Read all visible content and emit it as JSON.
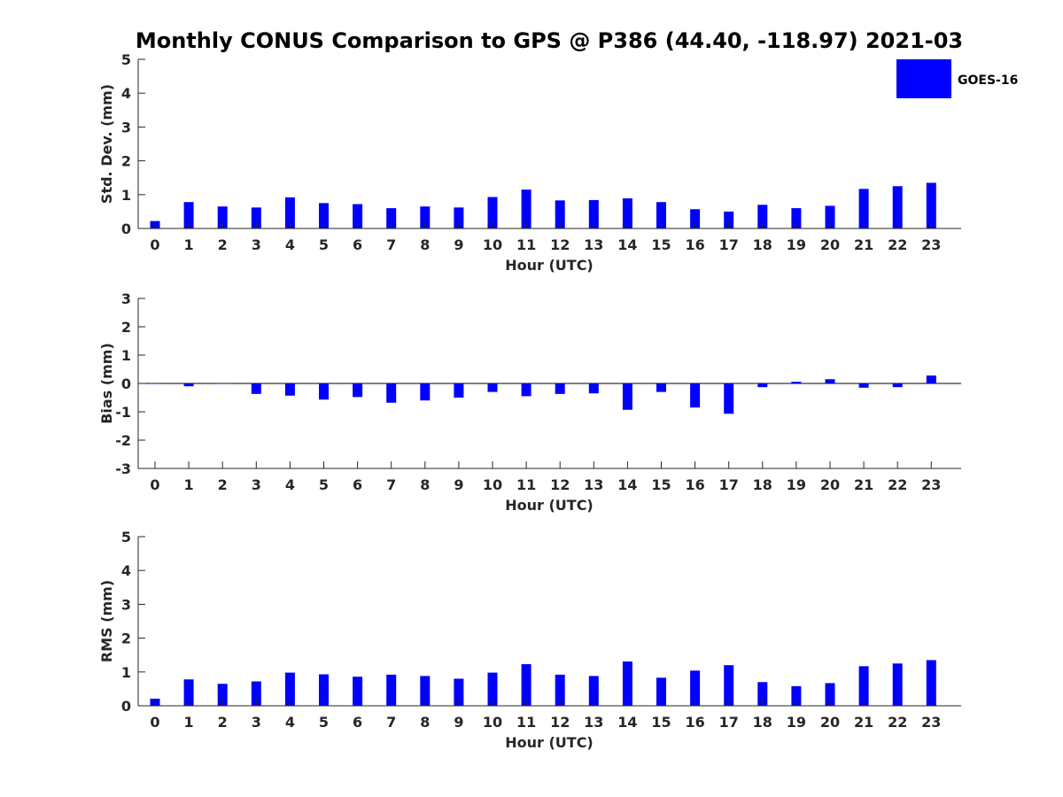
{
  "title": "Monthly CONUS Comparison to GPS @ P386 (44.40, -118.97) 2021-03",
  "colors": {
    "bar": "#0000ff",
    "axis": "#262626",
    "zero_line": "#000000"
  },
  "legend": {
    "label": "GOES-16",
    "placement": "top-right"
  },
  "chart_data": [
    {
      "type": "bar",
      "name": "std-dev",
      "ylabel": "Std. Dev. (mm)",
      "xlabel": "Hour (UTC)",
      "ylim": [
        0,
        5
      ],
      "yticks": [
        0,
        1,
        2,
        3,
        4,
        5
      ],
      "categories": [
        "0",
        "1",
        "2",
        "3",
        "4",
        "5",
        "6",
        "7",
        "8",
        "9",
        "10",
        "11",
        "12",
        "13",
        "14",
        "15",
        "16",
        "17",
        "18",
        "19",
        "20",
        "21",
        "22",
        "23"
      ],
      "series": [
        {
          "name": "GOES-16",
          "values": [
            0.22,
            0.78,
            0.65,
            0.62,
            0.92,
            0.75,
            0.72,
            0.6,
            0.65,
            0.62,
            0.93,
            1.15,
            0.83,
            0.84,
            0.89,
            0.78,
            0.57,
            0.5,
            0.7,
            0.6,
            0.67,
            1.17,
            1.25,
            1.35
          ]
        }
      ]
    },
    {
      "type": "bar",
      "name": "bias",
      "ylabel": "Bias (mm)",
      "xlabel": "Hour (UTC)",
      "ylim": [
        -3,
        3
      ],
      "yticks": [
        -3,
        -2,
        -1,
        0,
        1,
        2,
        3
      ],
      "categories": [
        "0",
        "1",
        "2",
        "3",
        "4",
        "5",
        "6",
        "7",
        "8",
        "9",
        "10",
        "11",
        "12",
        "13",
        "14",
        "15",
        "16",
        "17",
        "18",
        "19",
        "20",
        "21",
        "22",
        "23"
      ],
      "series": [
        {
          "name": "GOES-16",
          "values": [
            0.0,
            -0.1,
            0.0,
            -0.37,
            -0.43,
            -0.57,
            -0.48,
            -0.68,
            -0.6,
            -0.5,
            -0.3,
            -0.45,
            -0.37,
            -0.35,
            -0.93,
            -0.3,
            -0.85,
            -1.07,
            -0.13,
            0.06,
            0.15,
            -0.15,
            -0.13,
            0.28
          ]
        }
      ]
    },
    {
      "type": "bar",
      "name": "rms",
      "ylabel": "RMS (mm)",
      "xlabel": "Hour (UTC)",
      "ylim": [
        0,
        5
      ],
      "yticks": [
        0,
        1,
        2,
        3,
        4,
        5
      ],
      "categories": [
        "0",
        "1",
        "2",
        "3",
        "4",
        "5",
        "6",
        "7",
        "8",
        "9",
        "10",
        "11",
        "12",
        "13",
        "14",
        "15",
        "16",
        "17",
        "18",
        "19",
        "20",
        "21",
        "22",
        "23"
      ],
      "series": [
        {
          "name": "GOES-16",
          "values": [
            0.21,
            0.78,
            0.65,
            0.72,
            0.98,
            0.93,
            0.86,
            0.92,
            0.88,
            0.8,
            0.98,
            1.23,
            0.92,
            0.88,
            1.31,
            0.83,
            1.04,
            1.2,
            0.7,
            0.58,
            0.67,
            1.17,
            1.25,
            1.35
          ]
        }
      ]
    }
  ]
}
